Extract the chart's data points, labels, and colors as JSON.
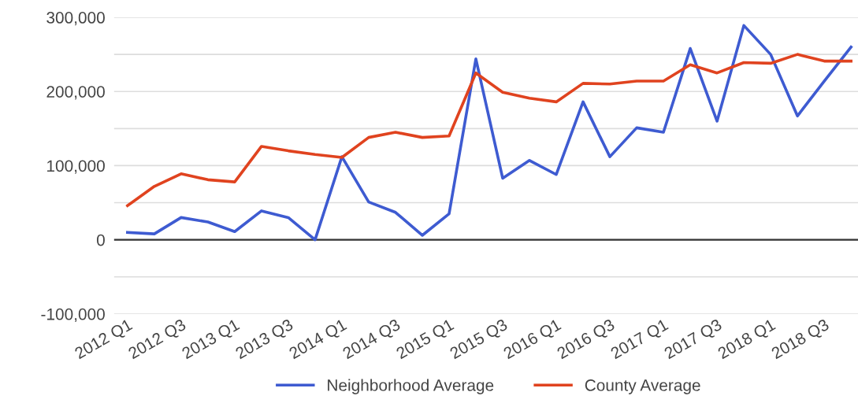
{
  "chart_data": {
    "type": "line",
    "categories": [
      "2012 Q1",
      null,
      "2012 Q3",
      null,
      "2013 Q1",
      null,
      "2013 Q3",
      null,
      "2014 Q1",
      null,
      "2014 Q3",
      null,
      "2015 Q1",
      null,
      "2015 Q3",
      null,
      "2016 Q1",
      null,
      "2016 Q3",
      null,
      "2017 Q1",
      null,
      "2017 Q3",
      null,
      "2018 Q1",
      null,
      "2018 Q3",
      null
    ],
    "series": [
      {
        "name": "Neighborhood Average",
        "color": "#3e5bd1",
        "values": [
          10000,
          8000,
          30000,
          24000,
          11000,
          39000,
          30000,
          0,
          112000,
          51000,
          37000,
          6000,
          35000,
          244000,
          83000,
          107000,
          88000,
          186000,
          112000,
          151000,
          145000,
          258000,
          160000,
          289000,
          250000,
          167000,
          214000,
          260000
        ]
      },
      {
        "name": "County Average",
        "color": "#e0431f",
        "values": [
          46000,
          72000,
          89000,
          81000,
          78000,
          126000,
          120000,
          115000,
          111000,
          138000,
          145000,
          138000,
          140000,
          225000,
          199000,
          191000,
          186000,
          211000,
          210000,
          214000,
          214000,
          236000,
          225000,
          239000,
          238000,
          250000,
          241000,
          241000
        ]
      }
    ],
    "ylim": [
      -100000,
      300000
    ],
    "yticks": [
      {
        "value": -100000,
        "label": "-100,000"
      },
      {
        "value": -50000,
        "label": null
      },
      {
        "value": 0,
        "label": "0"
      },
      {
        "value": 50000,
        "label": null
      },
      {
        "value": 100000,
        "label": "100,000"
      },
      {
        "value": 150000,
        "label": null
      },
      {
        "value": 200000,
        "label": "200,000"
      },
      {
        "value": 250000,
        "label": null
      },
      {
        "value": 300000,
        "label": "300,000"
      }
    ],
    "ref_lines": [
      {
        "axis": "y",
        "value": 0,
        "color": "#333333"
      }
    ],
    "grid": "y",
    "legend": "bottom",
    "marker": "none",
    "line_style": "solid"
  }
}
